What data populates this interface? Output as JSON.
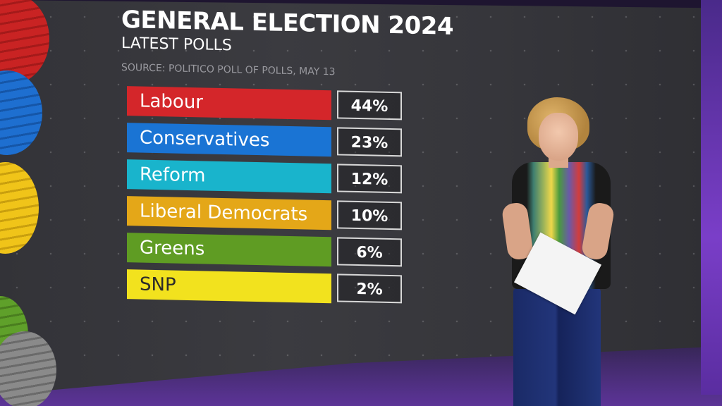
{
  "graphic": {
    "title": "GENERAL ELECTION 2024",
    "subtitle": "LATEST POLLS",
    "source": "SOURCE: POLITICO POLL OF POLLS, MAY 13"
  },
  "parties": [
    {
      "name": "Labour",
      "value": "44%",
      "color": "#d4262a"
    },
    {
      "name": "Conservatives",
      "value": "23%",
      "color": "#1a74d4"
    },
    {
      "name": "Reform",
      "value": "12%",
      "color": "#19b4cc"
    },
    {
      "name": "Liberal Democrats",
      "value": "10%",
      "color": "#e4a718"
    },
    {
      "name": "Greens",
      "value": "6%",
      "color": "#5f9c23"
    },
    {
      "name": "SNP",
      "value": "2%",
      "color": "#f2e21e"
    }
  ]
}
